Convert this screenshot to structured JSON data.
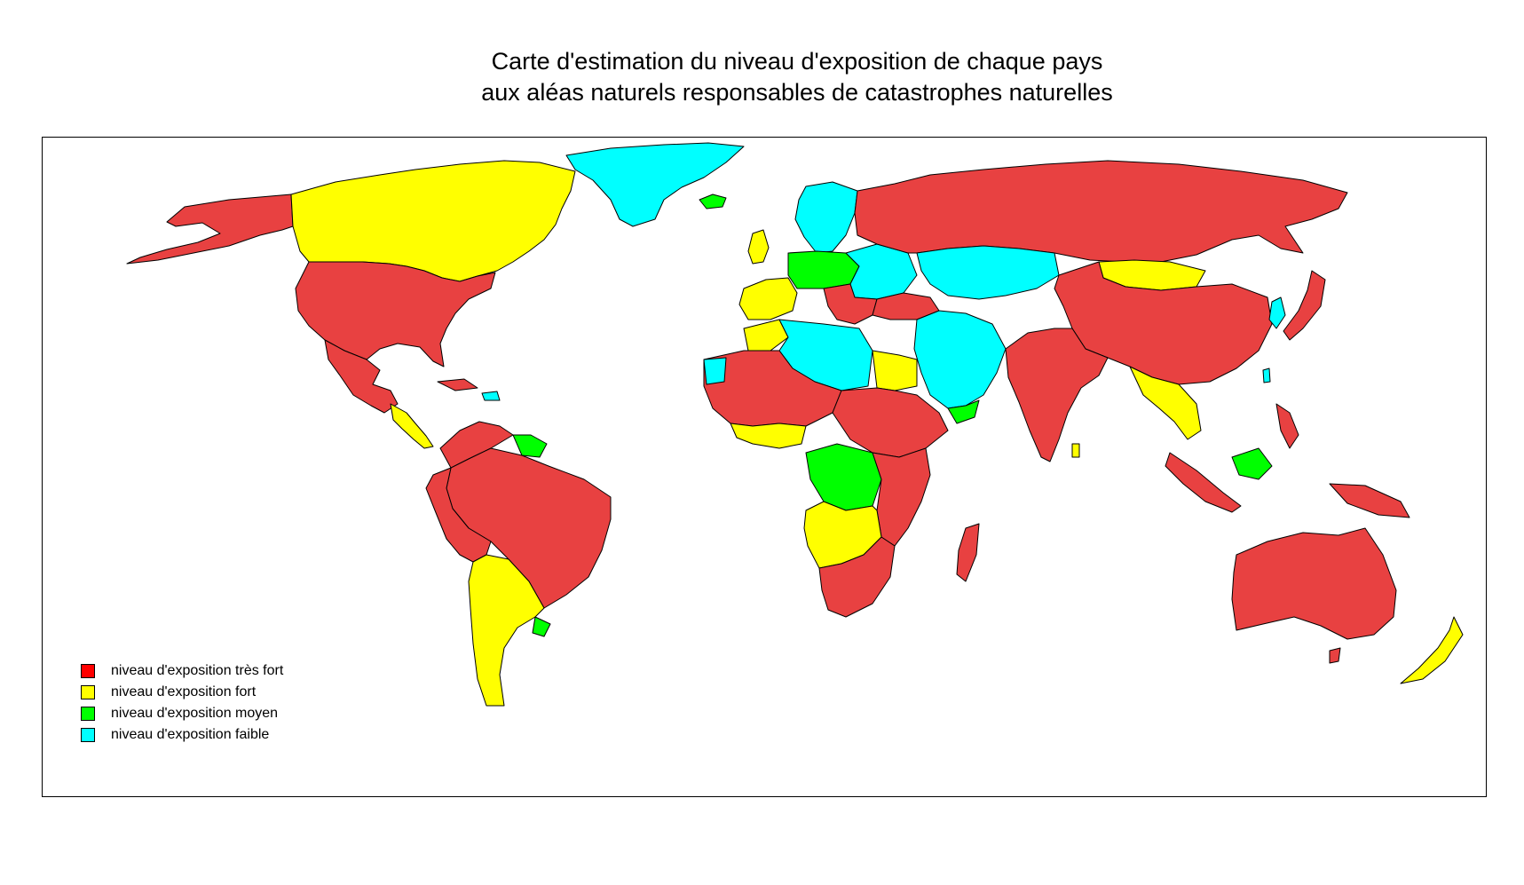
{
  "map": {
    "title_line1": "Carte d'estimation du niveau d'exposition de chaque pays",
    "title_line2": "aux aléas naturels responsables de catastrophes naturelles",
    "legend": [
      {
        "label": "niveau d'exposition très fort",
        "color": "#ff0000"
      },
      {
        "label": "niveau d'exposition fort",
        "color": "#ffff00"
      },
      {
        "label": "niveau d'exposition moyen",
        "color": "#00ff00"
      },
      {
        "label": "niveau d'exposition faible",
        "color": "#00ffff"
      }
    ],
    "colors": {
      "tres_fort": "#e84141",
      "fort": "#ffff00",
      "moyen": "#00ff00",
      "faible": "#00ffff",
      "border": "#000000"
    }
  }
}
